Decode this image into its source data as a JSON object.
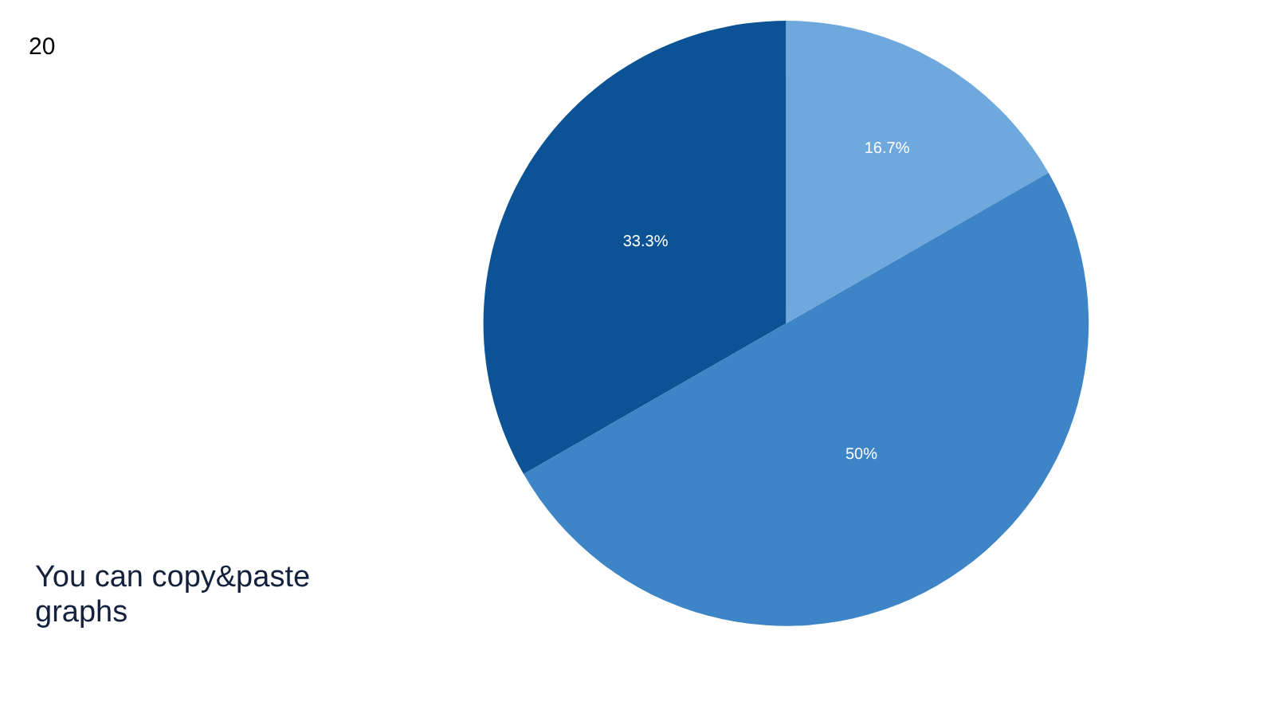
{
  "chart_data": {
    "type": "pie",
    "categories": [
      null,
      null,
      null
    ],
    "values": [
      16.7,
      50,
      33.3
    ],
    "value_labels": [
      "16.7%",
      "50%",
      "33.3%"
    ],
    "colors": [
      "#6fa8dc",
      "#3d85c6",
      "#0b5394"
    ],
    "legend": false,
    "annotations": [
      "20",
      "You can copy&paste graphs"
    ]
  }
}
